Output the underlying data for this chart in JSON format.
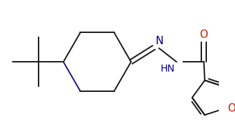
{
  "background_color": "#ffffff",
  "line_color": "#1a1a1a",
  "nitrogen_color": "#00008b",
  "oxygen_color": "#cc2200",
  "font_size": 9,
  "fig_width": 3.35,
  "fig_height": 1.81,
  "dpi": 100,
  "lw": 1.4,
  "xlim": [
    0,
    335
  ],
  "ylim": [
    0,
    181
  ]
}
